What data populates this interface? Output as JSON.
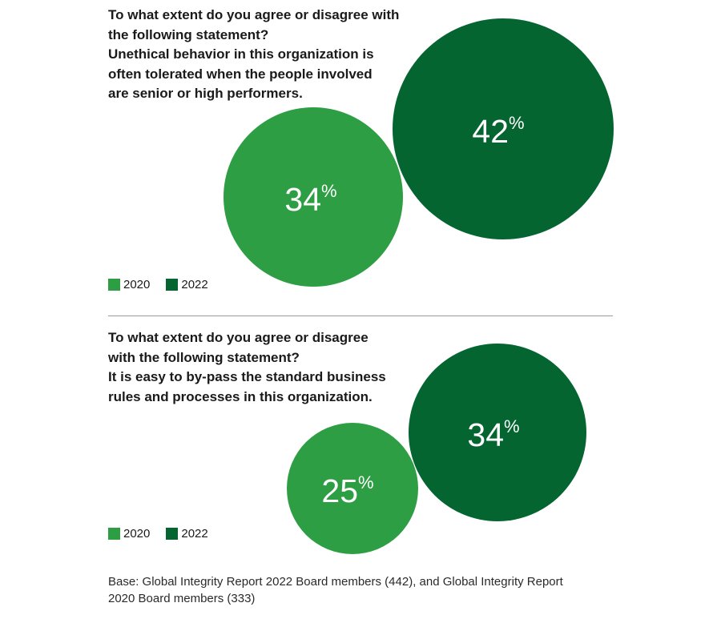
{
  "colors": {
    "y2020": "#2e9e44",
    "y2022": "#046531",
    "text": "#1a1a1a"
  },
  "chart_data": [
    {
      "type": "bubble",
      "title_lines": [
        "To what extent do you agree or disagree with",
        "the following statement?",
        "Unethical behavior in this organization is",
        "often tolerated when the people involved",
        "are senior or high performers."
      ],
      "series": [
        {
          "name": "2020",
          "value": 34,
          "label": "34",
          "unit": "%"
        },
        {
          "name": "2022",
          "value": 42,
          "label": "42",
          "unit": "%"
        }
      ],
      "legend": [
        "2020",
        "2022"
      ]
    },
    {
      "type": "bubble",
      "title_lines": [
        "To what extent do you agree or disagree",
        "with the following statement?",
        "It is easy to by-pass the standard business",
        "rules and processes in this organization."
      ],
      "series": [
        {
          "name": "2020",
          "value": 25,
          "label": "25",
          "unit": "%"
        },
        {
          "name": "2022",
          "value": 34,
          "label": "34",
          "unit": "%"
        }
      ],
      "legend": [
        "2020",
        "2022"
      ]
    }
  ],
  "footnote": {
    "line1": "Base: Global Integrity Report 2022 Board members (442), and Global Integrity Report",
    "line2": "2020 Board members (333)"
  }
}
